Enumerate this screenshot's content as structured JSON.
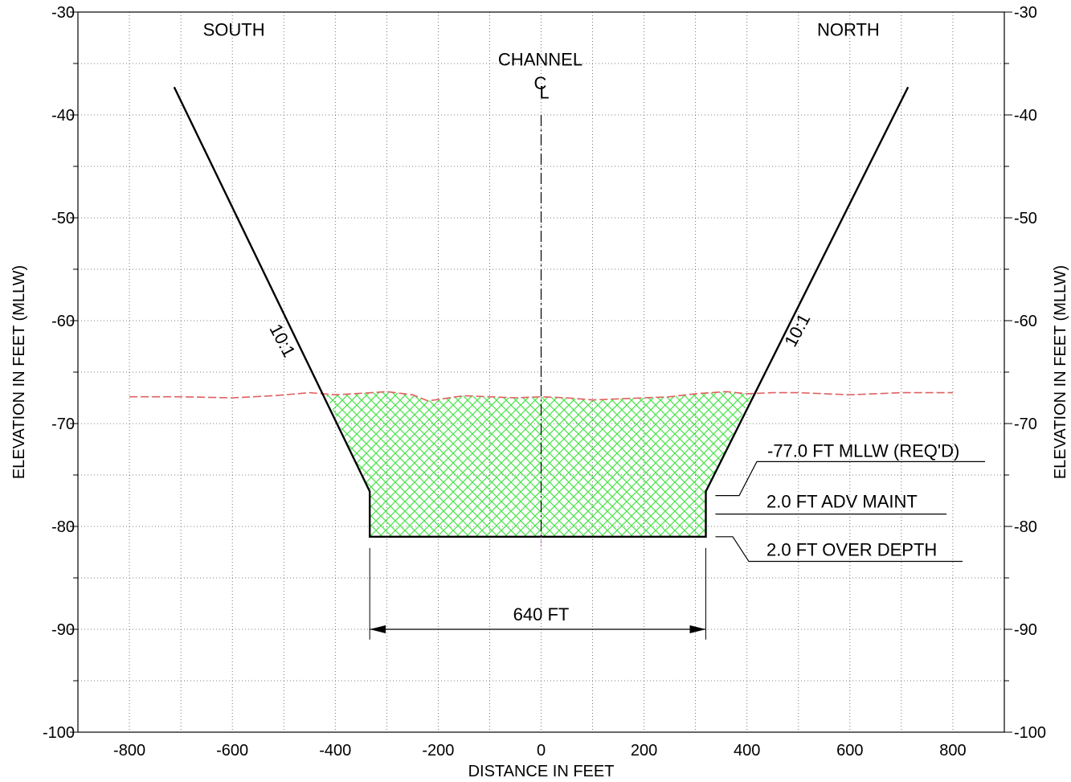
{
  "chart_data": {
    "type": "area",
    "title": "",
    "xlabel": "DISTANCE IN FEET",
    "ylabel": "ELEVATION IN FEET (MLLW)",
    "ylabel_right": "ELEVATION IN FEET (MLLW)",
    "xlim": [
      -900,
      900
    ],
    "ylim": [
      -100,
      -30
    ],
    "grid": true,
    "x_ticks": [
      -800,
      -600,
      -400,
      -200,
      0,
      200,
      400,
      600,
      800
    ],
    "x_tick_labels": [
      "-800",
      "-600",
      "-400",
      "-200",
      "0",
      "200",
      "400",
      "600",
      "800"
    ],
    "y_ticks": [
      -100,
      -90,
      -80,
      -70,
      -60,
      -50,
      -40,
      -30
    ],
    "y_tick_labels": [
      "-100",
      "-90",
      "-80",
      "-70",
      "-60",
      "-50",
      "-40",
      "-30"
    ],
    "side_labels": {
      "left": "SOUTH",
      "right": "NORTH"
    },
    "centerline": {
      "x": 0,
      "label_top": "CHANNEL",
      "label_symbol": "C",
      "label_sub": "L",
      "y_top": -40,
      "y_bottom": -82.2
    },
    "design_template": {
      "x": [
        -713,
        -333,
        -333,
        320,
        320,
        713
      ],
      "y": [
        -37.3,
        -76.6,
        -81.0,
        -81.0,
        -76.6,
        -37.3
      ]
    },
    "slope_labels": [
      {
        "text": "10:1",
        "x": -513,
        "y": -62.2,
        "side": "south"
      },
      {
        "text": "10:1",
        "x": 508,
        "y": -61.2,
        "side": "north"
      }
    ],
    "existing_surface": {
      "x": [
        -800,
        -700,
        -600,
        -520,
        -450,
        -400,
        -330,
        -300,
        -250,
        -220,
        -150,
        -50,
        0,
        50,
        100,
        150,
        250,
        300,
        360,
        400,
        450,
        500,
        600,
        700,
        800
      ],
      "y": [
        -67.4,
        -67.4,
        -67.5,
        -67.3,
        -67.0,
        -67.2,
        -67.0,
        -66.9,
        -67.2,
        -67.8,
        -67.3,
        -67.5,
        -67.4,
        -67.5,
        -67.7,
        -67.6,
        -67.4,
        -67.1,
        -66.9,
        -67.1,
        -67.0,
        -67.0,
        -67.2,
        -67.0,
        -67.0
      ]
    },
    "dredge_prism": {
      "x": [
        -418,
        -333,
        -333,
        320,
        320,
        410
      ],
      "y": [
        -67.2,
        -76.6,
        -81.0,
        -81.0,
        -76.6,
        -67.1
      ],
      "fill": "#4ee44e"
    },
    "width_dimension": {
      "x1": -320,
      "x2": 320,
      "y": -90,
      "label": "640 FT"
    },
    "callouts": [
      {
        "text": "-77.0 FT MLLW (REQ'D)",
        "at_elevation": -77.0
      },
      {
        "text": "2.0 FT ADV MAINT",
        "at_elevation": -79.0
      },
      {
        "text": "2.0 FT OVER DEPTH",
        "at_elevation": -81.0
      }
    ],
    "colors": {
      "grid": "#555555",
      "template": "#000000",
      "surface": "#e06060",
      "prism": "#4ee44e",
      "centerline": "#000000",
      "centerline_tail": "#c050c0"
    }
  }
}
